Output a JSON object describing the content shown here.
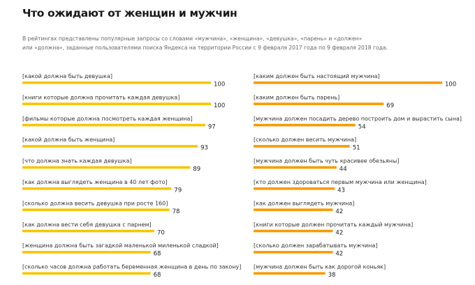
{
  "header": {
    "title": "Что ожидают от женщин и мужчин",
    "subtitle_line1": "В рейтингах представлены популярные запросы со словами «мужчина», «женщина», «девушка», «парень» и «должен»",
    "subtitle_line2": "или «должна», заданные пользователями поиска Яндекса на территории России с 9 февраля 2017 года по 9 февраля 2018 года."
  },
  "chart_data": [
    {
      "type": "bar",
      "orientation": "horizontal",
      "color": "#F7C600",
      "categories": [
        "[какой должна быть девушка]",
        "[книги которые должна прочитать каждая девушка]",
        "[фильмы которые должна посмотреть каждая женщина]",
        "[какой должна быть женщина]",
        "[что должна знать каждая девушка]",
        "[как должна выглядеть женщина в 40 лет фото]",
        "[сколько должна весить девушка при росте 160]",
        "[как должна вести себя девушка с парнем]",
        "[женщина должна быть загадкой маленькой миленькой сладкой]",
        "[сколько часов должна работать беременная женщина в день по закону]"
      ],
      "values": [
        100,
        100,
        97,
        93,
        89,
        79,
        78,
        70,
        68,
        68
      ],
      "xlim": [
        0,
        100
      ],
      "grid": false
    },
    {
      "type": "bar",
      "orientation": "horizontal",
      "color": "#F99A00",
      "categories": [
        "[каким должен быть настоящий мужчина]",
        "[каким должен быть парень]",
        "[мужчина должен посадить дерево построить дом и вырастить сына]",
        "[сколько должен весить мужчина]",
        "[мужчина должен быть чуть красивее обезьяны]",
        "[кто должен здороваться первым мужчина или женщина]",
        "[как должен выглядеть мужчина]",
        "[книги которые должен прочитать каждый мужчина]",
        "[сколько должен зарабатывать мужчина]",
        "[мужчина должен быть как дорогой коньяк]"
      ],
      "values": [
        100,
        69,
        54,
        51,
        44,
        43,
        42,
        42,
        42,
        38
      ],
      "xlim": [
        0,
        100
      ],
      "grid": false
    }
  ]
}
